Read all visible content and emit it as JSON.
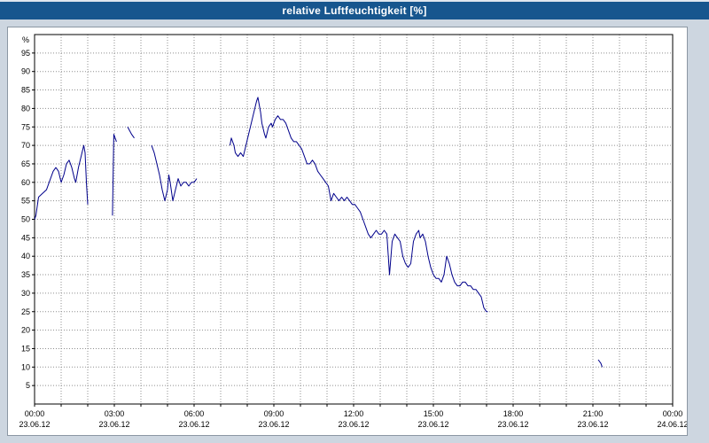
{
  "window": {
    "title": "relative Luftfeuchtigkeit [%]"
  },
  "colors": {
    "titlebar": "#17568e",
    "background": "#cdd6e0",
    "panel": "#ffffff",
    "grid": "#8f8f8f",
    "axis": "#000000",
    "line": "#00008b"
  },
  "chart_data": {
    "type": "line",
    "title": "relative Luftfeuchtigkeit [%]",
    "ylabel": "%",
    "xlabel": "",
    "ylim": [
      0,
      100
    ],
    "x_hours": [
      0,
      24
    ],
    "grid": "dotted",
    "legend": "none",
    "y_ticks": [
      95,
      90,
      85,
      80,
      75,
      70,
      65,
      60,
      55,
      50,
      45,
      40,
      35,
      30,
      25,
      20,
      15,
      10,
      5
    ],
    "x_ticks": [
      {
        "time": "00:00",
        "date": "23.06.12"
      },
      {
        "time": "03:00",
        "date": "23.06.12"
      },
      {
        "time": "06:00",
        "date": "23.06.12"
      },
      {
        "time": "09:00",
        "date": "23.06.12"
      },
      {
        "time": "12:00",
        "date": "23.06.12"
      },
      {
        "time": "15:00",
        "date": "23.06.12"
      },
      {
        "time": "18:00",
        "date": "23.06.12"
      },
      {
        "time": "21:00",
        "date": "23.06.12"
      },
      {
        "time": "00:00",
        "date": "24.06.12"
      }
    ],
    "series": [
      {
        "name": "relative Luftfeuchtigkeit",
        "color": "#00008b",
        "segments": [
          [
            [
              0.0,
              50
            ],
            [
              0.05,
              51
            ],
            [
              0.15,
              56
            ],
            [
              0.3,
              57
            ],
            [
              0.45,
              58
            ],
            [
              0.6,
              61
            ],
            [
              0.7,
              63
            ],
            [
              0.8,
              64
            ],
            [
              0.9,
              63
            ],
            [
              1.0,
              60
            ],
            [
              1.1,
              62
            ],
            [
              1.2,
              65
            ],
            [
              1.3,
              66
            ],
            [
              1.4,
              64
            ],
            [
              1.5,
              61
            ],
            [
              1.55,
              60
            ],
            [
              1.65,
              64
            ],
            [
              1.75,
              67
            ],
            [
              1.85,
              70
            ],
            [
              1.9,
              68
            ],
            [
              1.95,
              60
            ],
            [
              2.0,
              54
            ]
          ],
          [
            [
              2.93,
              51
            ],
            [
              2.98,
              73
            ],
            [
              3.08,
              71
            ]
          ],
          [
            [
              3.5,
              75
            ],
            [
              3.65,
              73
            ],
            [
              3.75,
              72
            ]
          ],
          [
            [
              4.4,
              70
            ],
            [
              4.5,
              68
            ],
            [
              4.6,
              65
            ],
            [
              4.7,
              62
            ],
            [
              4.8,
              58
            ],
            [
              4.9,
              55
            ],
            [
              5.0,
              58
            ],
            [
              5.05,
              62
            ],
            [
              5.1,
              60
            ],
            [
              5.2,
              55
            ],
            [
              5.3,
              58
            ],
            [
              5.4,
              61
            ],
            [
              5.5,
              59
            ],
            [
              5.6,
              60
            ],
            [
              5.7,
              60
            ],
            [
              5.8,
              59
            ],
            [
              5.9,
              60
            ],
            [
              6.0,
              60
            ],
            [
              6.1,
              61
            ]
          ],
          [
            [
              7.35,
              70
            ],
            [
              7.4,
              72
            ],
            [
              7.5,
              70
            ],
            [
              7.55,
              68
            ],
            [
              7.65,
              67
            ],
            [
              7.75,
              68
            ],
            [
              7.85,
              67
            ],
            [
              7.95,
              70
            ],
            [
              8.05,
              73
            ],
            [
              8.15,
              76
            ],
            [
              8.25,
              79
            ],
            [
              8.35,
              82
            ],
            [
              8.4,
              83
            ],
            [
              8.5,
              79
            ],
            [
              8.55,
              76
            ],
            [
              8.65,
              73
            ],
            [
              8.7,
              72
            ],
            [
              8.8,
              75
            ],
            [
              8.9,
              76
            ],
            [
              8.95,
              75
            ],
            [
              9.05,
              77
            ],
            [
              9.15,
              78
            ],
            [
              9.25,
              77
            ],
            [
              9.35,
              77
            ],
            [
              9.45,
              76
            ],
            [
              9.55,
              74
            ],
            [
              9.65,
              72
            ],
            [
              9.75,
              71
            ],
            [
              9.85,
              71
            ],
            [
              9.95,
              70
            ],
            [
              10.05,
              69
            ],
            [
              10.15,
              67
            ],
            [
              10.25,
              65
            ],
            [
              10.35,
              65
            ],
            [
              10.45,
              66
            ],
            [
              10.55,
              65
            ],
            [
              10.65,
              63
            ],
            [
              10.75,
              62
            ],
            [
              10.85,
              61
            ],
            [
              10.95,
              60
            ],
            [
              11.05,
              59
            ],
            [
              11.15,
              55
            ],
            [
              11.25,
              57
            ],
            [
              11.35,
              56
            ],
            [
              11.45,
              55
            ],
            [
              11.55,
              56
            ],
            [
              11.65,
              55
            ],
            [
              11.75,
              56
            ],
            [
              11.85,
              55
            ],
            [
              11.95,
              54
            ],
            [
              12.05,
              54
            ],
            [
              12.15,
              53
            ],
            [
              12.25,
              52
            ],
            [
              12.35,
              50
            ],
            [
              12.45,
              48
            ],
            [
              12.55,
              46
            ],
            [
              12.65,
              45
            ],
            [
              12.75,
              46
            ],
            [
              12.85,
              47
            ],
            [
              12.95,
              46
            ],
            [
              13.05,
              46
            ],
            [
              13.15,
              47
            ],
            [
              13.25,
              46
            ],
            [
              13.35,
              35
            ],
            [
              13.45,
              44
            ],
            [
              13.55,
              46
            ],
            [
              13.65,
              45
            ],
            [
              13.75,
              44
            ],
            [
              13.85,
              40
            ],
            [
              13.95,
              38
            ],
            [
              14.05,
              37
            ],
            [
              14.15,
              38
            ],
            [
              14.25,
              44
            ],
            [
              14.35,
              46
            ],
            [
              14.45,
              47
            ],
            [
              14.5,
              45
            ],
            [
              14.6,
              46
            ],
            [
              14.7,
              44
            ],
            [
              14.8,
              40
            ],
            [
              14.9,
              37
            ],
            [
              15.0,
              35
            ],
            [
              15.1,
              34
            ],
            [
              15.2,
              34
            ],
            [
              15.3,
              33
            ],
            [
              15.4,
              35
            ],
            [
              15.5,
              40
            ],
            [
              15.55,
              39
            ],
            [
              15.6,
              38
            ],
            [
              15.7,
              35
            ],
            [
              15.8,
              33
            ],
            [
              15.9,
              32
            ],
            [
              16.0,
              32
            ],
            [
              16.1,
              33
            ],
            [
              16.2,
              33
            ],
            [
              16.3,
              32
            ],
            [
              16.4,
              32
            ],
            [
              16.5,
              31
            ],
            [
              16.6,
              31
            ],
            [
              16.7,
              30
            ],
            [
              16.8,
              29
            ],
            [
              16.9,
              26
            ],
            [
              17.0,
              25
            ],
            [
              17.05,
              25
            ]
          ],
          [
            [
              21.2,
              12
            ],
            [
              21.3,
              11
            ],
            [
              21.35,
              10
            ]
          ]
        ]
      }
    ]
  }
}
